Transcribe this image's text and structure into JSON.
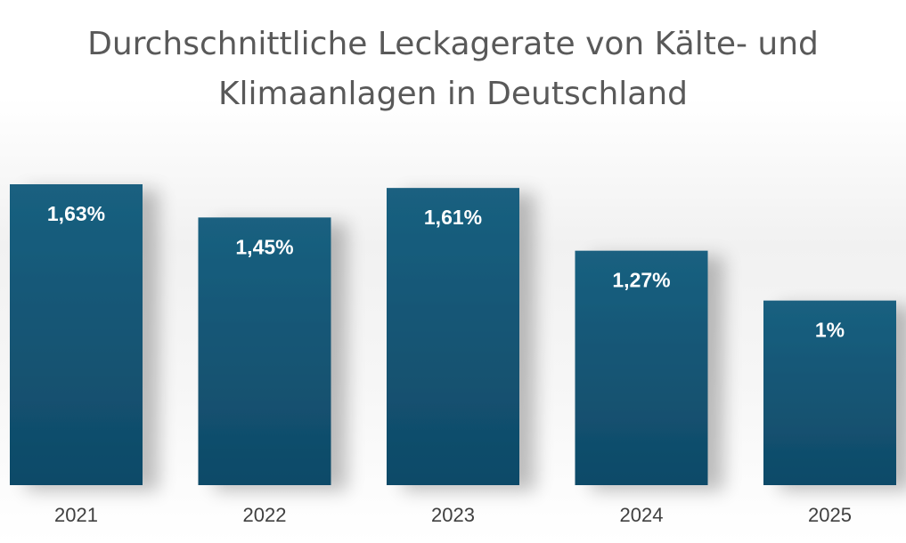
{
  "chart_data": {
    "type": "bar",
    "title_lines": [
      "Durchschnittliche Leckagerate von Kälte- und",
      "Klimaanlagen in Deutschland"
    ],
    "categories": [
      "2021",
      "2022",
      "2023",
      "2024",
      "2025"
    ],
    "values": [
      1.63,
      1.45,
      1.61,
      1.27,
      1.0
    ],
    "value_labels": [
      "1,63%",
      "1,45%",
      "1,61%",
      "1,27%",
      "1%"
    ],
    "unit": "%",
    "ylim": [
      0,
      1.63
    ],
    "grid": false,
    "legend": "none",
    "colors": {
      "bar_top": "#1a6080",
      "bar_bottom": "#0f4a68",
      "label": "#ffffff",
      "title": "#595959",
      "tick": "#404040"
    }
  }
}
